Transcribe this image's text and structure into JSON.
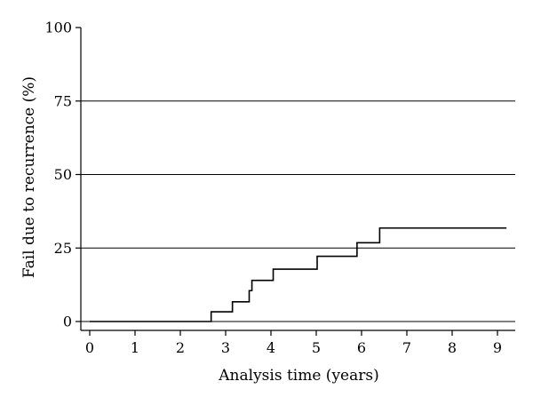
{
  "chart_data": {
    "type": "line",
    "title": "",
    "xlabel": "Analysis time (years)",
    "ylabel": "Fail due to recurrence (%)",
    "xlim": [
      0,
      9.25
    ],
    "ylim": [
      0,
      100
    ],
    "x_ticks": [
      0,
      1,
      2,
      3,
      4,
      5,
      6,
      7,
      8,
      9
    ],
    "y_ticks": [
      0,
      25,
      50,
      75,
      100
    ],
    "grid": "horizontal",
    "legend": "none",
    "line_color": "#000000",
    "series": [
      {
        "step": "post",
        "x": [
          0,
          2.68,
          3.15,
          3.52,
          3.58,
          4.05,
          5.02,
          5.9,
          6.4,
          9.2
        ],
        "y": [
          0,
          3.3,
          6.7,
          10.5,
          14,
          17.8,
          22.2,
          26.8,
          31.8,
          31.8
        ]
      }
    ]
  }
}
